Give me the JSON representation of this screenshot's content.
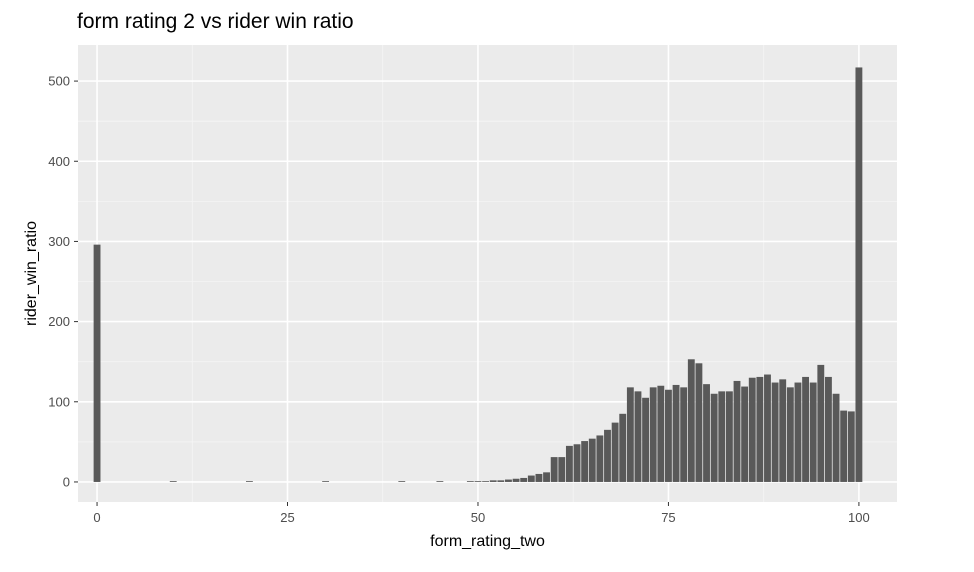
{
  "chart_data": {
    "type": "bar",
    "title": "form rating 2 vs rider win ratio",
    "xlabel": "form_rating_two",
    "ylabel": "rider_win_ratio",
    "xlim": [
      -2.5,
      105
    ],
    "ylim": [
      -25,
      545
    ],
    "x_ticks": [
      0,
      25,
      50,
      75,
      100
    ],
    "y_ticks": [
      0,
      100,
      200,
      300,
      400,
      500
    ],
    "grid": true,
    "x": [
      0,
      10,
      20,
      30,
      40,
      45,
      49,
      50,
      51,
      52,
      53,
      54,
      55,
      56,
      57,
      58,
      59,
      60,
      61,
      62,
      63,
      64,
      65,
      66,
      67,
      68,
      69,
      70,
      71,
      72,
      73,
      74,
      75,
      76,
      77,
      78,
      79,
      80,
      81,
      82,
      83,
      84,
      85,
      86,
      87,
      88,
      89,
      90,
      91,
      92,
      93,
      94,
      95,
      96,
      97,
      98,
      99,
      100
    ],
    "values": [
      296,
      1,
      1,
      1,
      1,
      1,
      1,
      1,
      1,
      2,
      2,
      3,
      4,
      5,
      8,
      10,
      12,
      31,
      31,
      45,
      47,
      51,
      54,
      58,
      65,
      74,
      85,
      118,
      113,
      105,
      118,
      120,
      115,
      121,
      118,
      153,
      148,
      122,
      110,
      113,
      113,
      126,
      119,
      130,
      131,
      134,
      124,
      128,
      118,
      124,
      131,
      124,
      146,
      131,
      110,
      89,
      88,
      517
    ]
  }
}
